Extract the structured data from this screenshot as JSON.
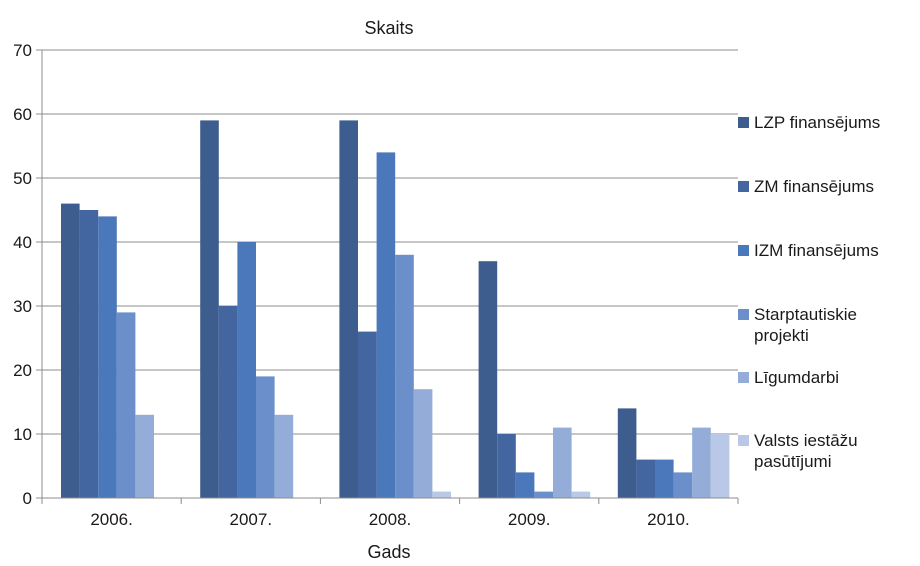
{
  "chart_data": {
    "type": "bar",
    "title": "Skaits",
    "xlabel": "Gads",
    "ylabel": "",
    "ylim": [
      0,
      70
    ],
    "yticks": [
      0,
      10,
      20,
      30,
      40,
      50,
      60,
      70
    ],
    "grid": true,
    "legend_position": "right",
    "categories": [
      "2006.",
      "2007.",
      "2008.",
      "2009.",
      "2010."
    ],
    "series": [
      {
        "name": "LZP finansējums",
        "color": "#3d5d8e",
        "values": [
          46,
          59,
          59,
          37,
          14
        ]
      },
      {
        "name": "ZM finansējums",
        "color": "#4466a0",
        "values": [
          45,
          30,
          26,
          10,
          6
        ]
      },
      {
        "name": "IZM finansējums",
        "color": "#4b78bb",
        "values": [
          44,
          40,
          54,
          4,
          6
        ]
      },
      {
        "name": "Starptautiskie projekti",
        "color": "#6a8fcb",
        "values": [
          29,
          19,
          38,
          1,
          4
        ]
      },
      {
        "name": "Līgumdarbi",
        "color": "#93acd8",
        "values": [
          13,
          13,
          17,
          11,
          11
        ]
      },
      {
        "name": "Valsts iestāžu pasūtījumi",
        "color": "#b8c8e6",
        "values": [
          0,
          0,
          1,
          1,
          10
        ]
      }
    ]
  }
}
